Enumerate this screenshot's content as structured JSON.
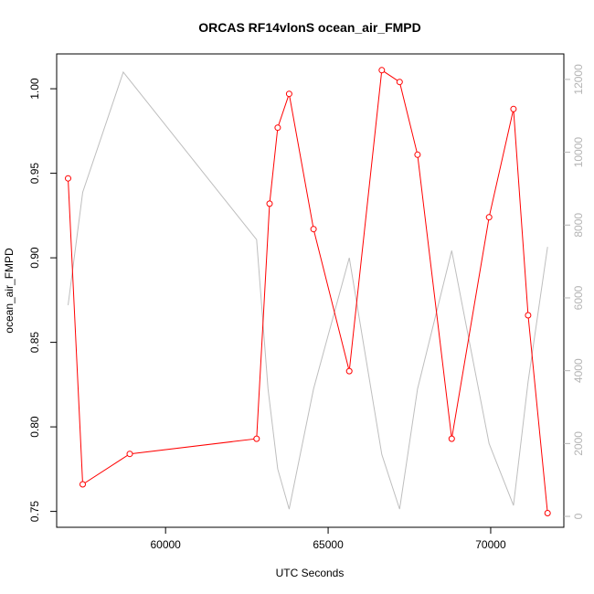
{
  "chart_data": {
    "type": "line",
    "title": "ORCAS RF14vlonS ocean_air_FMPD",
    "xlabel": "UTC Seconds",
    "ylabel": "ocean_air_FMPD",
    "xlim": [
      56650,
      72250
    ],
    "ylim": [
      0.7406,
      1.0206
    ],
    "y2lim": [
      -300,
      12700
    ],
    "x_ticks": [
      60000,
      65000,
      70000
    ],
    "x_tick_labels": [
      "60000",
      "65000",
      "70000"
    ],
    "y_ticks": [
      0.75,
      0.8,
      0.85,
      0.9,
      0.95,
      1.0
    ],
    "y_tick_labels": [
      "0.75",
      "0.80",
      "0.85",
      "0.90",
      "0.95",
      "1.00"
    ],
    "y2_ticks": [
      0,
      2000,
      4000,
      6000,
      8000,
      10000,
      12000
    ],
    "y2_tick_labels": [
      "0",
      "2000",
      "4000",
      "6000",
      "8000",
      "10000",
      "12000"
    ],
    "grid": false,
    "series": [
      {
        "axis": "left",
        "color": "#ff0000",
        "marker": "circle",
        "x": [
          57000,
          57450,
          58900,
          62800,
          63200,
          63450,
          63800,
          64550,
          65650,
          66650,
          67200,
          67750,
          68800,
          69950,
          70700,
          71150,
          71750
        ],
        "y": [
          0.947,
          0.766,
          0.784,
          0.793,
          0.932,
          0.977,
          0.997,
          0.917,
          0.833,
          1.011,
          1.004,
          0.961,
          0.793,
          0.924,
          0.988,
          0.866,
          0.749
        ]
      },
      {
        "axis": "right",
        "color": "#bebebe",
        "marker": "none",
        "x": [
          57000,
          57450,
          58700,
          62800,
          63150,
          63450,
          63800,
          64550,
          65650,
          66650,
          67200,
          67750,
          68800,
          69950,
          70700,
          71150,
          71750
        ],
        "y": [
          5800,
          8900,
          12200,
          7600,
          3500,
          1300,
          200,
          3500,
          7100,
          1700,
          200,
          3500,
          7300,
          2000,
          300,
          3700,
          7400
        ]
      }
    ]
  }
}
